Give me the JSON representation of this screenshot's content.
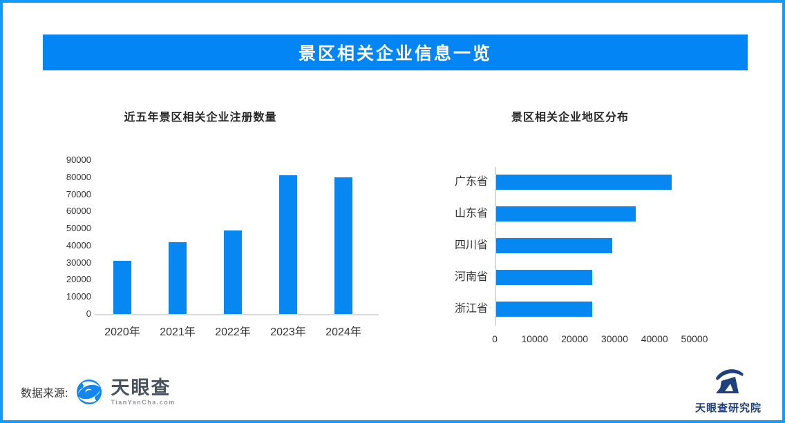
{
  "header": {
    "title": "景区相关企业信息一览"
  },
  "chart_data": [
    {
      "type": "bar",
      "orientation": "vertical",
      "title": "近五年景区相关企业注册数量",
      "categories": [
        "2020年",
        "2021年",
        "2022年",
        "2023年",
        "2024年"
      ],
      "values": [
        31000,
        42000,
        49000,
        81000,
        80000
      ],
      "xlabel": "",
      "ylabel": "",
      "ylim": [
        0,
        90000
      ],
      "yticks": [
        0,
        10000,
        20000,
        30000,
        40000,
        50000,
        60000,
        70000,
        80000,
        90000
      ],
      "grid": false,
      "bar_color": "#0787f2"
    },
    {
      "type": "bar",
      "orientation": "horizontal",
      "title": "景区相关企业地区分布",
      "categories": [
        "广东省",
        "山东省",
        "四川省",
        "河南省",
        "浙江省"
      ],
      "values": [
        44000,
        35000,
        29000,
        24000,
        24000
      ],
      "xlabel": "",
      "ylabel": "",
      "xlim": [
        0,
        55000
      ],
      "xticks": [
        0,
        10000,
        20000,
        30000,
        40000,
        50000
      ],
      "grid": false,
      "bar_color": "#0787f2"
    }
  ],
  "footer": {
    "source_label": "数据来源:",
    "tianyancha_wordmark": "天眼查",
    "tianyancha_domain": "TianYanCha.com",
    "institute": "天眼查研究院"
  },
  "colors": {
    "banner_blue": "#0385f6",
    "bar_blue": "#0787f2",
    "border_blue": "#0f9bff",
    "axis_gray": "#d9d9d9",
    "text_dark": "#333333",
    "institute_navy": "#20407d"
  }
}
